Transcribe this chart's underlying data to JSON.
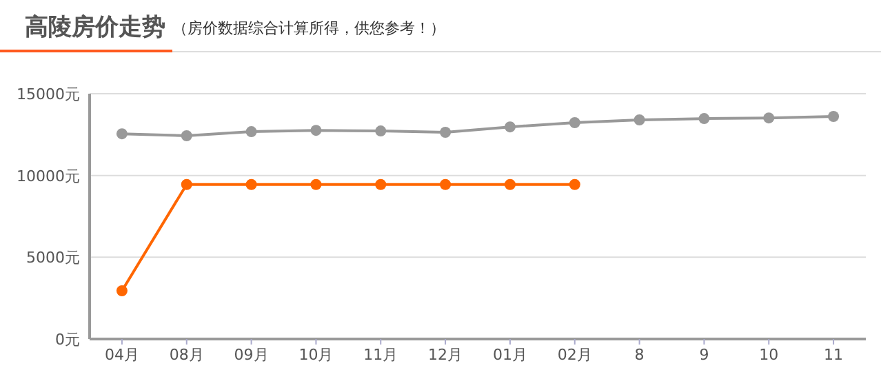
{
  "chart_data": {
    "type": "line",
    "title": "高陵房价走势",
    "subtitle": "（房价数据综合计算所得，供您参考！）",
    "categories": [
      "04月",
      "08月",
      "09月",
      "10月",
      "11月",
      "12月",
      "01月",
      "02月",
      "8",
      "9",
      "10",
      "11"
    ],
    "series": [
      {
        "color": "#999999",
        "values": [
          12550,
          12430,
          12680,
          12760,
          12720,
          12640,
          12970,
          13230,
          13400,
          13480,
          13520,
          13610
        ]
      },
      {
        "color": "#ff6600",
        "values": [
          2950,
          9450,
          9450,
          9450,
          9450,
          9450,
          9450,
          9450,
          null,
          null,
          null,
          null
        ]
      }
    ],
    "ylim": [
      0,
      15000
    ],
    "yticks": [
      {
        "value": 0,
        "label": "0元"
      },
      {
        "value": 5000,
        "label": "5000元"
      },
      {
        "value": 10000,
        "label": "10000元"
      },
      {
        "value": 15000,
        "label": "15000元"
      }
    ],
    "grid": "y",
    "marker": "circle",
    "line_style": "solid"
  }
}
